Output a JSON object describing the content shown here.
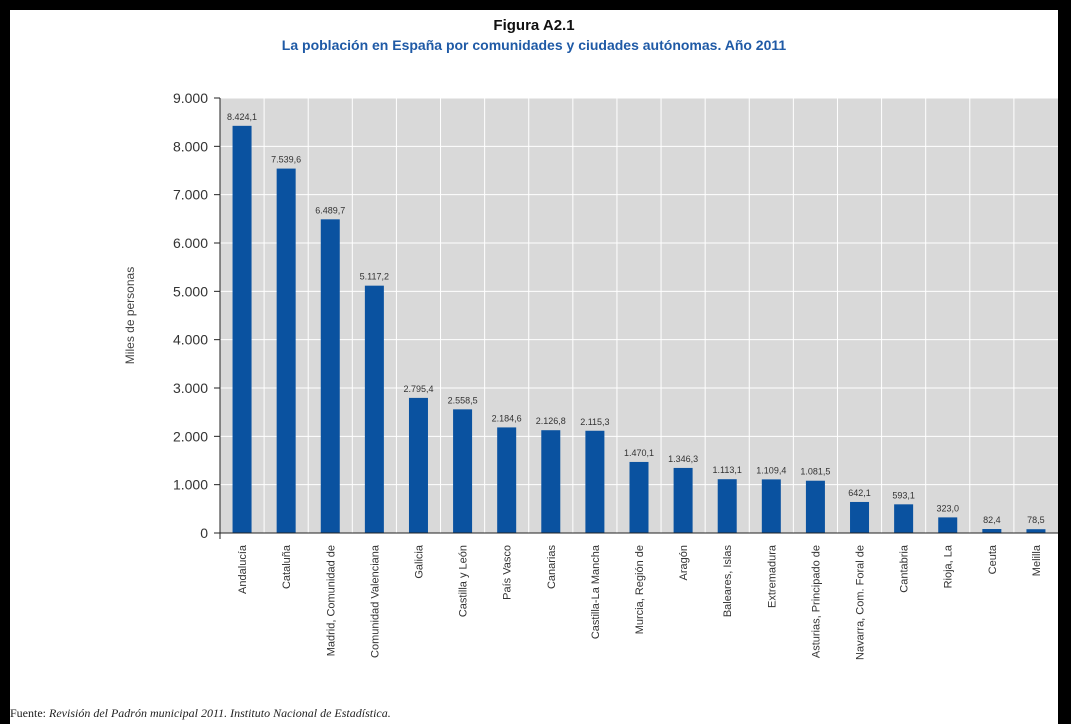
{
  "figure": {
    "title": "Figura A2.1",
    "subtitle": "La población en España por comunidades y ciudades autónomas. Año 2011"
  },
  "source": {
    "prefix": "Fuente: ",
    "text": "Revisión del Padrón municipal 2011. Instituto Nacional de Estadística."
  },
  "colors": {
    "bar": "#0a52a0",
    "plot_background": "#d9d9d9",
    "gridline": "#ffffff",
    "subtitle": "#1f5aa6"
  },
  "chart_data": {
    "type": "bar",
    "title": "Figura A2.1",
    "subtitle": "La población en España por comunidades y ciudades autónomas. Año 2011",
    "ylabel": "Miles de personas",
    "xlabel": "",
    "ylim": [
      0,
      9000
    ],
    "yticks": [
      0,
      1000,
      2000,
      3000,
      4000,
      5000,
      6000,
      7000,
      8000,
      9000
    ],
    "ytick_labels": [
      "0",
      "1.000",
      "2.000",
      "3.000",
      "4.000",
      "5.000",
      "6.000",
      "7.000",
      "8.000",
      "9.000"
    ],
    "grid": true,
    "categories": [
      "Andalucía",
      "Cataluña",
      "Madrid, Comunidad de",
      "Comunidad Valenciana",
      "Galicia",
      "Castilla y León",
      "País Vasco",
      "Canarias",
      "Castilla-La Mancha",
      "Murcia, Región de",
      "Aragón",
      "Baleares, Islas",
      "Extremadura",
      "Asturias, Principado de",
      "Navarra, Com. Foral de",
      "Cantabria",
      "Rioja, La",
      "Ceuta",
      "Melilla"
    ],
    "values": [
      8424.1,
      7539.6,
      6489.7,
      5117.2,
      2795.4,
      2558.5,
      2184.6,
      2126.8,
      2115.3,
      1470.1,
      1346.3,
      1113.1,
      1109.4,
      1081.5,
      642.1,
      593.1,
      323.0,
      82.4,
      78.5
    ],
    "value_labels": [
      "8.424,1",
      "7.539,6",
      "6.489,7",
      "5.117,2",
      "2.795,4",
      "2.558,5",
      "2.184,6",
      "2.126,8",
      "2.115,3",
      "1.470,1",
      "1.346,3",
      "1.113,1",
      "1.109,4",
      "1.081,5",
      "642,1",
      "593,1",
      "323,0",
      "82,4",
      "78,5"
    ]
  }
}
